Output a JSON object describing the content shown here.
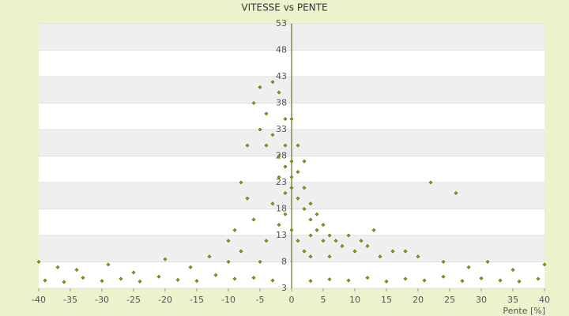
{
  "chart_data": {
    "type": "scatter",
    "title": "VITESSE vs PENTE",
    "x_label": "Pente [%]",
    "xlim": [
      -40,
      40
    ],
    "xticks": [
      -40,
      -35,
      -30,
      -25,
      -20,
      -15,
      -10,
      -5,
      0,
      5,
      10,
      15,
      20,
      25,
      30,
      35,
      40
    ],
    "ylim": [
      3,
      53
    ],
    "yticks": [
      3,
      8,
      13,
      18,
      23,
      28,
      33,
      38,
      43,
      48,
      53
    ],
    "grid": true,
    "color": "#8f9c00",
    "x": [
      -39,
      -36,
      -33,
      -30,
      -27,
      -24,
      -21,
      -18,
      -15,
      -12,
      -9,
      -6,
      -3,
      3,
      6,
      9,
      12,
      15,
      18,
      21,
      24,
      27,
      30,
      33,
      36,
      39,
      -40,
      -37,
      -34,
      -29,
      -25,
      -20,
      -16,
      -13,
      -10,
      -8,
      28,
      31,
      35,
      40,
      24,
      20,
      -6,
      -5,
      -4,
      -5,
      -3,
      -2,
      -4,
      -3,
      -2,
      -1,
      -7,
      -8,
      -7,
      -6,
      -9,
      -10,
      -1,
      0,
      0,
      1,
      0,
      1,
      2,
      2,
      -1,
      -2,
      3,
      3,
      4,
      4,
      5,
      5,
      6,
      7,
      8,
      9,
      10,
      12,
      14,
      16,
      18,
      11,
      13,
      -1,
      -2,
      -3,
      0,
      1,
      2,
      3,
      0,
      22,
      26,
      -4,
      -5,
      1,
      2,
      -1,
      3,
      6
    ],
    "y": [
      4.5,
      4.2,
      5,
      4.4,
      4.8,
      4.3,
      5.2,
      4.6,
      4.4,
      5.5,
      4.8,
      5,
      4.5,
      4.4,
      4.7,
      4.5,
      5,
      4.3,
      4.8,
      4.5,
      5.2,
      4.4,
      4.9,
      4.5,
      4.3,
      4.8,
      8,
      7,
      6.5,
      7.5,
      6,
      8.5,
      7,
      9,
      8,
      10,
      7,
      8,
      6.5,
      7.5,
      8,
      9,
      38,
      41,
      36,
      33,
      42,
      40,
      30,
      32,
      28,
      35,
      30,
      23,
      20,
      16,
      14,
      12,
      30,
      27,
      24,
      25,
      22,
      20,
      22,
      18,
      21,
      24,
      19,
      16,
      17,
      14,
      15,
      12,
      13,
      12,
      11,
      13,
      10,
      11,
      9,
      10,
      10,
      12,
      14,
      17,
      15,
      19,
      14,
      12,
      10,
      9,
      35,
      23,
      21,
      12,
      8,
      30,
      27,
      26,
      13,
      9
    ]
  }
}
